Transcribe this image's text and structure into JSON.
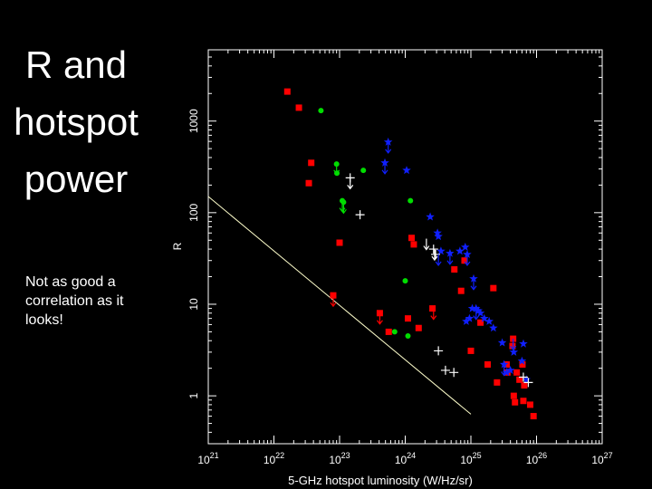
{
  "slide": {
    "title_lines": [
      "R and",
      "hotspot",
      "power"
    ],
    "note": "Not as good a correlation as it looks!"
  },
  "chart_data": {
    "type": "scatter",
    "title": "",
    "xlabel": "5-GHz hotspot luminosity (W/Hz/sr)",
    "ylabel": "R",
    "x_scale": "log",
    "y_scale": "log",
    "xlim": [
      1e+21,
      1e+27
    ],
    "ylim": [
      0.3,
      6000
    ],
    "x_ticks": [
      {
        "value": 1e+21,
        "base": "10",
        "exp": "21"
      },
      {
        "value": 1e+22,
        "base": "10",
        "exp": "22"
      },
      {
        "value": 1e+23,
        "base": "10",
        "exp": "23"
      },
      {
        "value": 1e+24,
        "base": "10",
        "exp": "24"
      },
      {
        "value": 1e+25,
        "base": "10",
        "exp": "25"
      },
      {
        "value": 1e+26,
        "base": "10",
        "exp": "26"
      },
      {
        "value": 1e+27,
        "base": "10",
        "exp": "27"
      }
    ],
    "y_ticks": [
      {
        "value": 1,
        "label": "1"
      },
      {
        "value": 10,
        "label": "10"
      },
      {
        "value": 100,
        "label": "100"
      },
      {
        "value": 1000,
        "label": "1000"
      }
    ],
    "colors": {
      "red": "#ff0000",
      "green": "#00dd00",
      "blue": "#1020ff",
      "white": "#ffffff",
      "fit": "#ffffcc"
    },
    "fit_line": [
      [
        1e+21,
        150
      ],
      [
        1e+25,
        0.63
      ]
    ],
    "series": [
      {
        "marker": "square",
        "color": "red",
        "points": [
          [
            1.6e+22,
            2100
          ],
          [
            2.4e+22,
            1400
          ],
          [
            3.4e+22,
            210
          ],
          [
            3.7e+22,
            350
          ],
          [
            8e+22,
            12.5
          ],
          [
            1e+23,
            47
          ],
          [
            4.1e+23,
            8
          ],
          [
            1.25e+24,
            53
          ],
          [
            1.35e+24,
            45
          ],
          [
            1.1e+24,
            7
          ],
          [
            5.6e+23,
            5
          ],
          [
            1.6e+24,
            5.5
          ],
          [
            2.6e+24,
            9
          ],
          [
            5.6e+24,
            24
          ],
          [
            8e+24,
            30
          ],
          [
            1e+25,
            3.1
          ],
          [
            7.1e+24,
            14
          ],
          [
            1.4e+25,
            6.3
          ],
          [
            1.8e+25,
            2.2
          ],
          [
            2.2e+25,
            15
          ],
          [
            2.5e+25,
            1.4
          ],
          [
            3.5e+25,
            2.2
          ],
          [
            3.6e+25,
            1.8
          ],
          [
            4.4e+25,
            4.2
          ],
          [
            5e+25,
            1.8
          ],
          [
            4.3e+25,
            3.5
          ],
          [
            5.5e+25,
            1.5
          ],
          [
            6.1e+25,
            2.2
          ],
          [
            6.5e+25,
            1.3
          ],
          [
            4.5e+25,
            1.0
          ],
          [
            4.7e+25,
            0.85
          ],
          [
            6.3e+25,
            0.88
          ],
          [
            8e+25,
            0.8
          ],
          [
            9e+25,
            0.6
          ]
        ]
      },
      {
        "marker": "circle",
        "color": "green",
        "points": [
          [
            9e+22,
            340
          ],
          [
            5.2e+22,
            1300
          ],
          [
            1.2e+24,
            135
          ],
          [
            9.1e+22,
            270
          ],
          [
            1.1e+23,
            135
          ],
          [
            1.15e+23,
            130
          ],
          [
            2.3e+23,
            290
          ],
          [
            1e+24,
            18
          ],
          [
            6.9e+23,
            5
          ],
          [
            1.1e+24,
            4.5
          ]
        ]
      },
      {
        "marker": "star",
        "color": "blue",
        "points": [
          [
            5.5e+23,
            590
          ],
          [
            4.9e+23,
            350
          ],
          [
            1.05e+24,
            290
          ],
          [
            2.4e+24,
            90
          ],
          [
            3.2e+24,
            55
          ],
          [
            3.1e+24,
            60
          ],
          [
            3.5e+24,
            38
          ],
          [
            4.8e+24,
            36
          ],
          [
            6.8e+24,
            38
          ],
          [
            8.2e+24,
            42
          ],
          [
            8.8e+24,
            35
          ],
          [
            1.1e+25,
            19
          ],
          [
            1.05e+25,
            9
          ],
          [
            8.5e+24,
            6.5
          ],
          [
            9.5e+24,
            7
          ],
          [
            1.2e+25,
            9
          ],
          [
            1.3e+25,
            8.5
          ],
          [
            1.4e+25,
            8
          ],
          [
            1.6e+25,
            7
          ],
          [
            1.9e+25,
            6.5
          ],
          [
            2.2e+25,
            5.5
          ],
          [
            3e+25,
            3.8
          ],
          [
            3.2e+25,
            2.2
          ],
          [
            3.5e+25,
            1.8
          ],
          [
            4e+25,
            1.9
          ],
          [
            4.5e+25,
            3.0
          ],
          [
            6e+25,
            2.4
          ],
          [
            6.3e+25,
            3.7
          ],
          [
            7e+25,
            1.5
          ]
        ]
      },
      {
        "marker": "plus",
        "color": "white",
        "points": [
          [
            1.45e+23,
            240
          ],
          [
            2.05e+23,
            95
          ],
          [
            2.9e+24,
            35
          ],
          [
            2.7e+24,
            40
          ],
          [
            3.2e+24,
            3.1
          ],
          [
            4.1e+24,
            1.9
          ],
          [
            5.5e+24,
            1.8
          ],
          [
            6.3e+25,
            1.6
          ],
          [
            7.5e+25,
            1.4
          ]
        ]
      }
    ],
    "upper_limits": [
      {
        "x": 9e+22,
        "y": 350,
        "color": "green"
      },
      {
        "x": 1.1e+23,
        "y": 135,
        "color": "green"
      },
      {
        "x": 1.15e+23,
        "y": 130,
        "color": "green"
      },
      {
        "x": 4.9e+23,
        "y": 350,
        "color": "blue"
      },
      {
        "x": 5.5e+23,
        "y": 590,
        "color": "blue"
      },
      {
        "x": 1.45e+23,
        "y": 240,
        "color": "white"
      },
      {
        "x": 2.1e+24,
        "y": 52,
        "color": "white"
      },
      {
        "x": 2.8e+24,
        "y": 40,
        "color": "white"
      },
      {
        "x": 3.2e+24,
        "y": 35,
        "color": "blue"
      },
      {
        "x": 4.8e+24,
        "y": 36,
        "color": "blue"
      },
      {
        "x": 8.8e+24,
        "y": 35,
        "color": "blue"
      },
      {
        "x": 1.1e+25,
        "y": 19,
        "color": "blue"
      },
      {
        "x": 1.2e+25,
        "y": 9,
        "color": "blue"
      },
      {
        "x": 2.7e+24,
        "y": 9,
        "color": "red"
      },
      {
        "x": 8e+22,
        "y": 12.5,
        "color": "red"
      },
      {
        "x": 4.1e+23,
        "y": 8,
        "color": "red"
      },
      {
        "x": 3.2e+25,
        "y": 2.2,
        "color": "blue"
      },
      {
        "x": 4.4e+25,
        "y": 4.2,
        "color": "blue"
      }
    ]
  }
}
